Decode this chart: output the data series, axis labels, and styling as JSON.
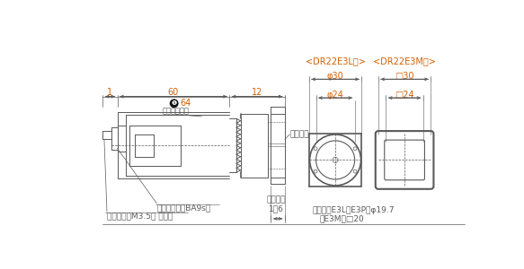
{
  "bg_color": "#ffffff",
  "line_color": "#595959",
  "dim_color": "#d45f00",
  "text_color": "#595959",
  "dim1": "1",
  "dim60": "60",
  "dim12": "12",
  "dim64": "64",
  "phi30": "φ30",
  "phi24": "φ24",
  "sq30": "┰ 30",
  "sq24": "┰ 24",
  "cover_label": "充電部カバー",
  "packing_label": "パッキン",
  "lamp_label": "ランプ（口金BA9s）",
  "terminal_label": "端子ねじ（M3.5） ナット",
  "panel_label1": "パネル厄",
  "panel_label2": "1～6",
  "dr22e3l_label": "<DR22E3L形>",
  "dr22e3m_label": "<DR22E3M形>",
  "nameplate1": "記名板（E3LシE3P） φ19.7",
  "nameplate2": "（E3M） ┢20"
}
